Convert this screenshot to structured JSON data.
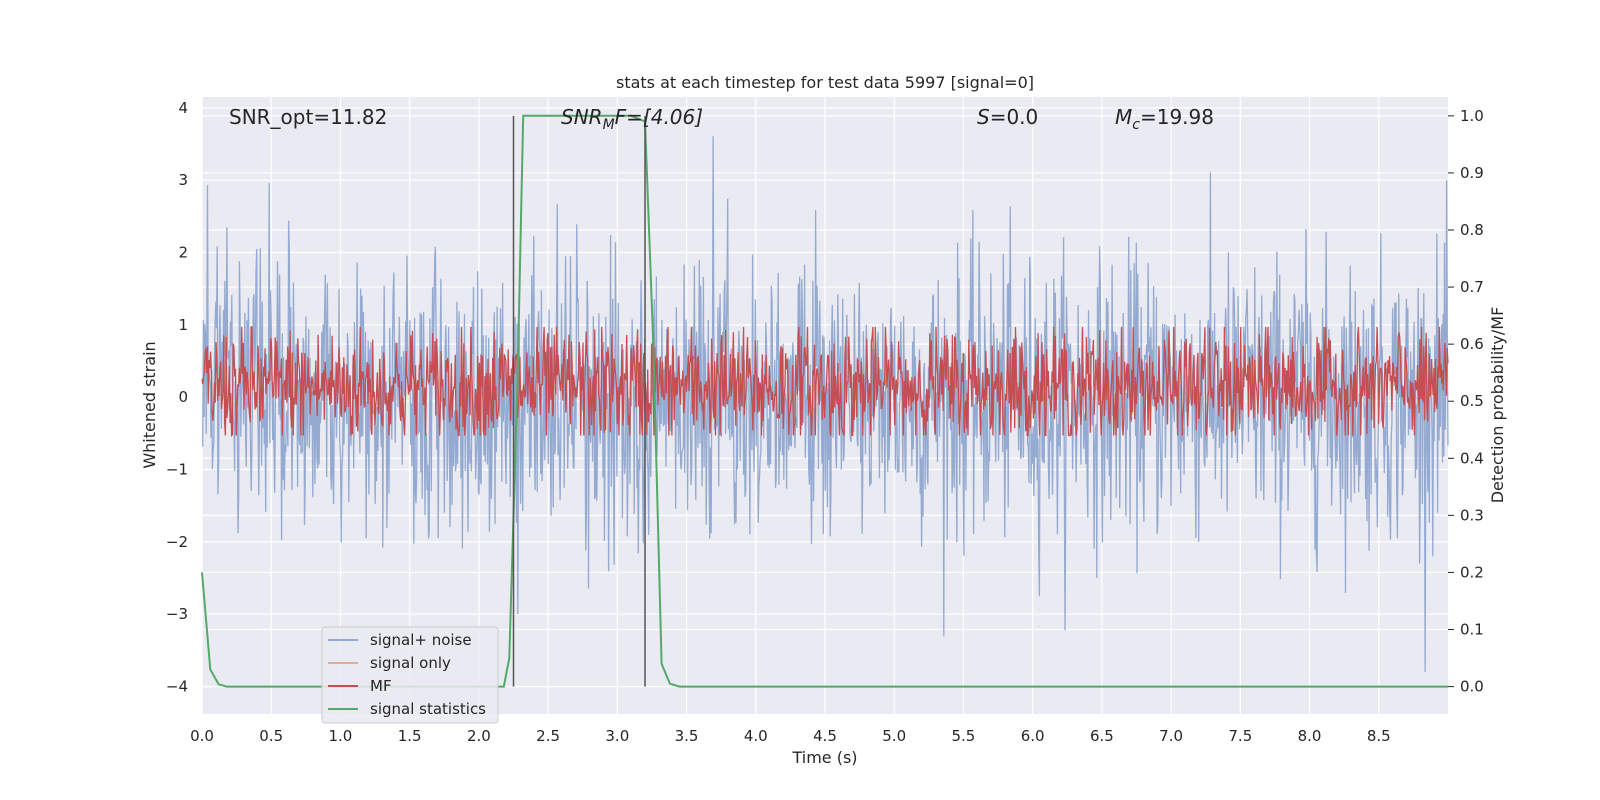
{
  "chart_data": {
    "type": "line",
    "title": "stats at each timestep for test data 5997 [signal=0]",
    "xlabel": "Time (s)",
    "ylabel": "Whitened strain",
    "ylabel_right": "Detection probability/MF",
    "xlim": [
      0.0,
      9.0
    ],
    "ylim": [
      -4.38,
      4.15
    ],
    "ylim_right": [
      -0.048,
      1.033
    ],
    "x_ticks": [
      0.0,
      0.5,
      1.0,
      1.5,
      2.0,
      2.5,
      3.0,
      3.5,
      4.0,
      4.5,
      5.0,
      5.5,
      6.0,
      6.5,
      7.0,
      7.5,
      8.0,
      8.5
    ],
    "x_tick_labels": [
      "0.0",
      "0.5",
      "1.0",
      "1.5",
      "2.0",
      "2.5",
      "3.0",
      "3.5",
      "4.0",
      "4.5",
      "5.0",
      "5.5",
      "6.0",
      "6.5",
      "7.0",
      "7.5",
      "8.0",
      "8.5"
    ],
    "y_ticks": [
      -4,
      -3,
      -2,
      -1,
      0,
      1,
      2,
      3,
      4
    ],
    "y_tick_labels": [
      "−4",
      "−3",
      "−2",
      "−1",
      "0",
      "1",
      "2",
      "3",
      "4"
    ],
    "y_right_ticks": [
      0.0,
      0.1,
      0.2,
      0.3,
      0.4,
      0.5,
      0.6,
      0.7,
      0.8,
      0.9,
      1.0
    ],
    "y_right_tick_labels": [
      "0.0",
      "0.1",
      "0.2",
      "0.3",
      "0.4",
      "0.5",
      "0.6",
      "0.7",
      "0.8",
      "0.9",
      "1.0"
    ],
    "grid": true,
    "legend_position": "lower-left",
    "annotations": [
      {
        "key": "snr_opt",
        "label": "SNR_opt=11.82",
        "x": 0.2
      },
      {
        "key": "snr_mf",
        "label": "SNR_MF=[4.06]",
        "main": "SNR",
        "sub": "M",
        "rest": "F=[4.06]",
        "x": 2.6
      },
      {
        "key": "s",
        "label": "S=0.0",
        "main": "S",
        "rest": "=0.0",
        "x": 5.6
      },
      {
        "key": "mc",
        "label": "M_c=19.98",
        "main": "M",
        "sub": "c",
        "rest": "=19.98",
        "x": 6.6
      }
    ],
    "vertical_markers": [
      2.25,
      3.2
    ],
    "series": [
      {
        "name": "signal+ noise",
        "axis": "left",
        "color": "#8fa6cf",
        "kind": "noise",
        "x_range": [
          0.0,
          9.0
        ],
        "approx_band": [
          -2.0,
          2.2
        ],
        "extremes_min": -3.8,
        "extremes_max": 3.8
      },
      {
        "name": "signal only",
        "axis": "left",
        "color": "#e8a98f",
        "kind": "flat",
        "values": [
          0,
          0
        ]
      },
      {
        "name": "MF",
        "axis": "right",
        "color": "#c44e52",
        "kind": "noise",
        "x_range": [
          0.0,
          9.0
        ],
        "approx_band": [
          0.45,
          0.6
        ],
        "extremes_max": 0.63
      },
      {
        "name": "signal statistics",
        "axis": "right",
        "color": "#55a868",
        "kind": "line",
        "x": [
          0.0,
          0.06,
          0.12,
          0.18,
          2.1,
          2.18,
          2.22,
          2.28,
          2.32,
          3.0,
          3.1,
          3.2,
          3.26,
          3.32,
          3.38,
          3.45,
          3.6,
          9.0
        ],
        "values": [
          0.2,
          0.03,
          0.004,
          0.0,
          0.0,
          0.0,
          0.05,
          0.55,
          1.0,
          1.0,
          1.0,
          0.99,
          0.6,
          0.04,
          0.005,
          0.0,
          0.0,
          0.0
        ]
      }
    ],
    "colors": {
      "plot_background": "#eaeaf2",
      "grid": "#ffffff",
      "marker_line": "#555555"
    }
  }
}
